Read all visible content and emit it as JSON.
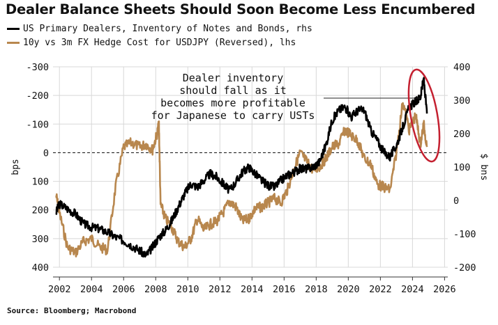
{
  "title": "Dealer Balance Sheets Should Soon Become Less Encumbered",
  "source": "Source: Bloomberg; Macrobond",
  "chart_data": {
    "type": "line",
    "title": "Dealer Balance Sheets Should Soon Become Less Encumbered",
    "x_range": [
      2001.6,
      2026.2
    ],
    "x_ticks": [
      2002,
      2004,
      2006,
      2008,
      2010,
      2012,
      2014,
      2016,
      2018,
      2020,
      2022,
      2024,
      2026
    ],
    "x_tick_labels": [
      "2002",
      "2004",
      "2006",
      "2008",
      "2010",
      "2012",
      "2014",
      "2016",
      "2018",
      "2020",
      "2022",
      "2024",
      "2026"
    ],
    "left_axis": {
      "label": "bps",
      "inverted": true,
      "range": [
        -300,
        400
      ],
      "ticks": [
        -300,
        -200,
        -100,
        0,
        100,
        200,
        300,
        400
      ],
      "tick_labels": [
        "-300",
        "-200",
        "-100",
        "0",
        "100",
        "200",
        "300",
        "400"
      ],
      "zero_line": "dashed"
    },
    "right_axis": {
      "label": "$ bns",
      "range": [
        -200,
        400
      ],
      "ticks": [
        -200,
        -100,
        0,
        100,
        200,
        300,
        400
      ],
      "tick_labels": [
        "-200",
        "-100",
        "0",
        "100",
        "200",
        "300",
        "400"
      ]
    },
    "series": [
      {
        "name": "US Primary Dealers, Inventory of Notes and Bonds, rhs",
        "axis": "right",
        "color": "#000000",
        "x": [
          2001.8,
          2002.0,
          2002.5,
          2003.0,
          2003.5,
          2004.0,
          2004.5,
          2005.0,
          2005.5,
          2006.0,
          2006.5,
          2007.0,
          2007.4,
          2007.8,
          2008.2,
          2008.6,
          2009.0,
          2009.4,
          2009.8,
          2010.2,
          2010.6,
          2011.0,
          2011.4,
          2011.8,
          2012.2,
          2012.6,
          2013.0,
          2013.4,
          2013.8,
          2014.2,
          2014.6,
          2015.0,
          2015.4,
          2015.8,
          2016.2,
          2016.6,
          2017.0,
          2017.4,
          2017.8,
          2018.2,
          2018.6,
          2019.0,
          2019.4,
          2019.8,
          2020.2,
          2020.6,
          2021.0,
          2021.4,
          2021.8,
          2022.2,
          2022.6,
          2023.0,
          2023.4,
          2023.8,
          2024.2,
          2024.5,
          2024.7,
          2024.9
        ],
        "values": [
          -35,
          -10,
          -25,
          -40,
          -70,
          -80,
          -85,
          -95,
          -110,
          -120,
          -135,
          -150,
          -165,
          -140,
          -110,
          -90,
          -60,
          -20,
          20,
          50,
          40,
          60,
          80,
          70,
          50,
          30,
          55,
          85,
          100,
          80,
          60,
          45,
          40,
          60,
          75,
          85,
          95,
          95,
          100,
          115,
          165,
          240,
          270,
          280,
          250,
          270,
          270,
          210,
          180,
          145,
          130,
          165,
          220,
          280,
          295,
          310,
          365,
          260
        ]
      },
      {
        "name": "10y vs 3m FX Hedge Cost for USDJPY (Reversed), lhs",
        "axis": "left",
        "color": "#b8874e",
        "x": [
          2001.8,
          2002.0,
          2002.5,
          2003.0,
          2003.5,
          2004.0,
          2004.5,
          2005.0,
          2005.5,
          2006.0,
          2006.5,
          2007.0,
          2007.4,
          2007.8,
          2008.1,
          2008.2,
          2008.3,
          2008.6,
          2009.0,
          2009.4,
          2009.8,
          2010.2,
          2010.6,
          2011.0,
          2011.4,
          2011.8,
          2012.2,
          2012.6,
          2013.0,
          2013.4,
          2013.8,
          2014.2,
          2014.6,
          2015.0,
          2015.4,
          2015.8,
          2016.2,
          2016.6,
          2017.0,
          2017.4,
          2017.8,
          2018.2,
          2018.6,
          2019.0,
          2019.4,
          2019.8,
          2020.2,
          2020.6,
          2021.0,
          2021.4,
          2021.8,
          2022.2,
          2022.6,
          2023.0,
          2023.4,
          2023.8,
          2024.2,
          2024.5,
          2024.7,
          2024.9
        ],
        "values": [
          150,
          210,
          330,
          350,
          310,
          300,
          330,
          340,
          120,
          -20,
          -35,
          -20,
          -30,
          -10,
          -70,
          -100,
          180,
          230,
          260,
          310,
          330,
          300,
          230,
          270,
          250,
          240,
          210,
          170,
          190,
          240,
          230,
          195,
          190,
          175,
          160,
          175,
          130,
          60,
          0,
          30,
          60,
          50,
          20,
          -20,
          -30,
          -80,
          -60,
          -40,
          20,
          40,
          110,
          120,
          130,
          0,
          -180,
          -80,
          -130,
          -30,
          -100,
          -20
        ]
      }
    ],
    "annotations": [
      {
        "text": [
          "Dealer inventory",
          "should fall as it",
          "becomes more profitable",
          "for Japanese to carry USTs"
        ],
        "points_to": "2024 peak",
        "highlight": "red ellipse around the 2024 values"
      }
    ]
  },
  "colors": {
    "dealers": "#000000",
    "hedge": "#b8874e",
    "highlight": "#c42030",
    "grid": "#d8d8d8"
  }
}
